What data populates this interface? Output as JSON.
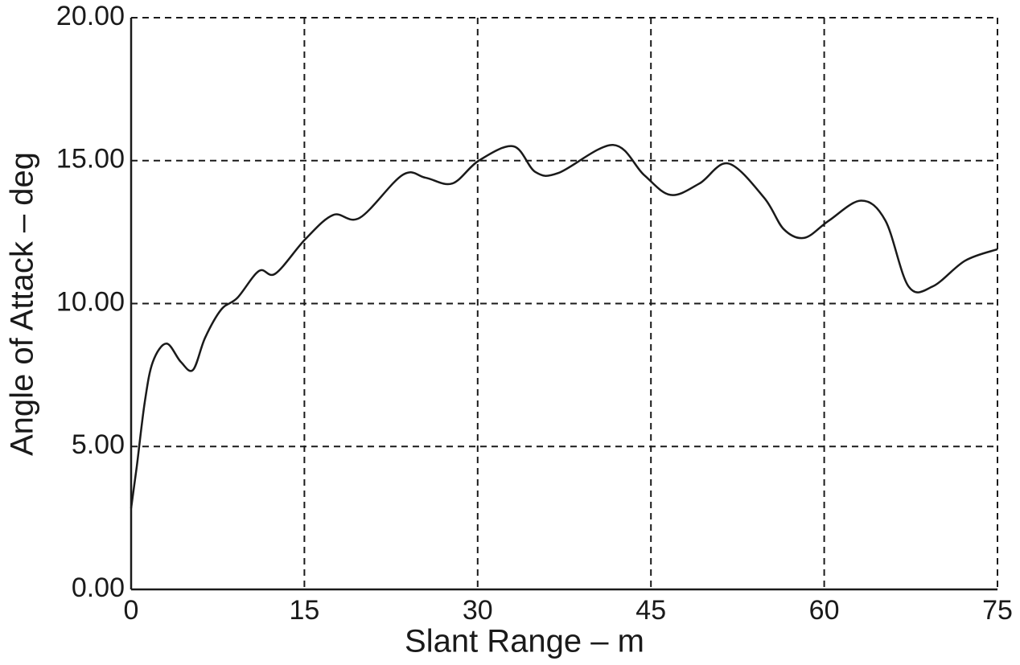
{
  "chart_data": {
    "type": "line",
    "xlabel": "Slant Range – m",
    "ylabel": "Angle of Attack – deg",
    "x": [
      0,
      0.49,
      1.18,
      1.88,
      3.06,
      4.3,
      5.36,
      6.4,
      7.8,
      9.2,
      11.07,
      12.5,
      15.1,
      17.5,
      19.8,
      23.5,
      25.5,
      27.8,
      30.1,
      33.1,
      35.0,
      37.0,
      41.7,
      44.4,
      46.7,
      49.2,
      51.7,
      54.8,
      56.5,
      58.3,
      60.4,
      63.2,
      65.3,
      67.3,
      69.4,
      72.2,
      75
    ],
    "series": [
      {
        "color": "#1a1a1a",
        "values": [
          2.84,
          4.3,
          6.55,
          7.96,
          8.6,
          7.96,
          7.68,
          8.8,
          9.79,
          10.2,
          11.14,
          11.05,
          12.26,
          13.1,
          13.0,
          14.5,
          14.4,
          14.2,
          15.0,
          15.5,
          14.6,
          14.57,
          15.55,
          14.5,
          13.8,
          14.2,
          14.9,
          13.7,
          12.6,
          12.3,
          12.9,
          13.6,
          12.9,
          10.6,
          10.6,
          11.5,
          11.9
        ]
      }
    ],
    "xlim": [
      0,
      75
    ],
    "xticks": [
      0,
      15,
      30,
      45,
      60,
      75
    ],
    "ylim": [
      0,
      20
    ],
    "yticks": [
      {
        "value": 0,
        "label": "0.00"
      },
      {
        "value": 5,
        "label": "5.00"
      },
      {
        "value": 10,
        "label": "10.00"
      },
      {
        "value": 15,
        "label": "15.00"
      },
      {
        "value": 20,
        "label": "20.00"
      }
    ],
    "grid": true
  }
}
